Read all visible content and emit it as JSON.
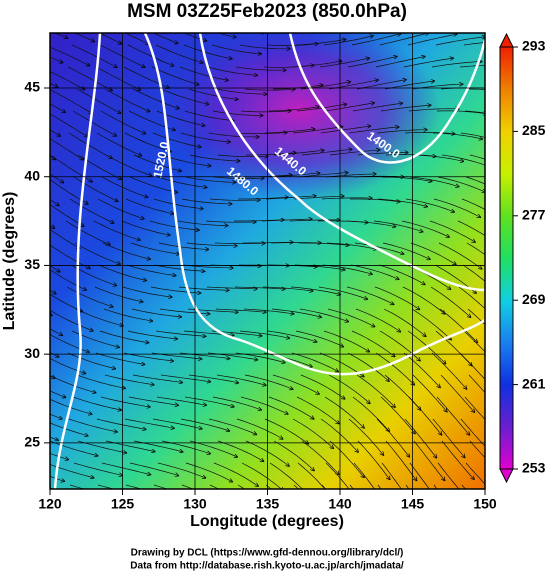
{
  "chart_data": {
    "type": "streamline-map",
    "title": "MSM 03Z25Feb2023 (850.0hPa)",
    "xlabel": "Longitude (degrees)",
    "ylabel": "Latitude  (degrees)",
    "xlim": [
      120,
      150
    ],
    "xticks": [
      120,
      125,
      130,
      135,
      140,
      145,
      150
    ],
    "ylim": [
      22.4,
      48.1
    ],
    "yticks": [
      25,
      30,
      35,
      40,
      45
    ],
    "grid": true,
    "contour_labels": [
      "1520.0",
      "1480.0",
      "1440.0",
      "1400.0"
    ],
    "colorbar": {
      "clim": [
        253,
        293
      ],
      "ticks": [
        253,
        261,
        269,
        277,
        285,
        293
      ],
      "colors": [
        "#e000d0",
        "#6a1fd0",
        "#1030e0",
        "#1a80f0",
        "#10d0e0",
        "#20e060",
        "#60e020",
        "#c8f000",
        "#f0d000",
        "#f08000",
        "#f02000"
      ]
    },
    "footer": [
      "Drawing by DCL (https://www.gfd-dennou.org/library/dcl/)",
      "Data from http://database.rish.kyoto-u.ac.jp/arch/jmadata/"
    ]
  }
}
